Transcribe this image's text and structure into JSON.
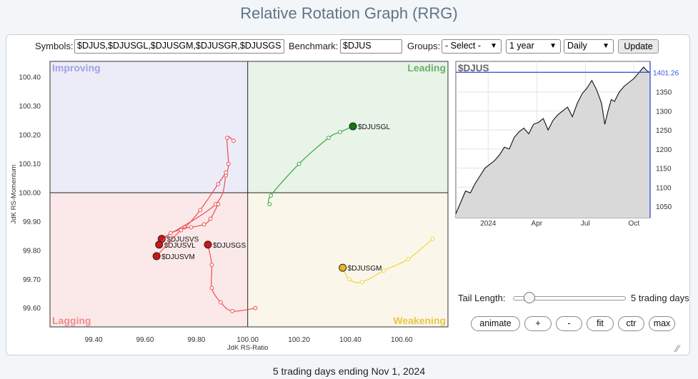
{
  "page": {
    "title": "Relative Rotation Graph (RRG)",
    "footer": "5 trading days ending Nov 1, 2024"
  },
  "controls": {
    "symbols_label": "Symbols:",
    "symbols_value": "$DJUS,$DJUSGL,$DJUSGM,$DJUSGR,$DJUSGS",
    "benchmark_label": "Benchmark:",
    "benchmark_value": "$DJUS",
    "groups_label": "Groups:",
    "groups_value": "- Select -",
    "period_value": "1 year",
    "frequency_value": "Daily",
    "update_label": "Update"
  },
  "tail": {
    "label": "Tail Length:",
    "value": 5,
    "value_text": "5 trading days"
  },
  "buttons": {
    "animate": "animate",
    "plus": "+",
    "minus": "-",
    "fit": "fit",
    "ctr": "ctr",
    "max": "max"
  },
  "chart_data": [
    {
      "type": "scatter",
      "title": "Relative Rotation Graph",
      "xlabel": "JdK RS-Ratio",
      "ylabel": "JdK RS-Momentum",
      "xlim": [
        99.23,
        100.78
      ],
      "ylim": [
        99.535,
        100.455
      ],
      "xticks": [
        99.4,
        99.6,
        99.8,
        100.0,
        100.2,
        100.4,
        100.6
      ],
      "yticks": [
        99.6,
        99.7,
        99.8,
        99.9,
        100.0,
        100.1,
        100.2,
        100.3,
        100.4
      ],
      "quadrants": {
        "top_left": "Improving",
        "top_right": "Leading",
        "bottom_left": "Lagging",
        "bottom_right": "Weakening"
      },
      "quadrant_colors": {
        "improving": "#ececf8",
        "leading": "#e9f4e9",
        "lagging": "#fbe9e9",
        "weakening": "#faf7ea",
        "improving_text": "#9fa3e4",
        "leading_text": "#69b06a",
        "lagging_text": "#f18d8d",
        "weakening_text": "#e8c64a"
      },
      "series": [
        {
          "name": "$DJUSGL",
          "color": "#3aa63a",
          "head_color": "#0d7a12",
          "points": [
            [
              100.085,
              99.96
            ],
            [
              100.09,
              99.99
            ],
            [
              100.2,
              100.1
            ],
            [
              100.315,
              100.19
            ],
            [
              100.36,
              100.21
            ],
            [
              100.41,
              100.23
            ]
          ]
        },
        {
          "name": "$DJUSGM",
          "color": "#f1d33a",
          "head_color": "#e6b620",
          "points": [
            [
              100.72,
              99.84
            ],
            [
              100.625,
              99.77
            ],
            [
              100.53,
              99.73
            ],
            [
              100.445,
              99.69
            ],
            [
              100.395,
              99.7
            ],
            [
              100.37,
              99.74
            ]
          ]
        },
        {
          "name": "$DJUSGS",
          "color": "#ee4c4c",
          "head_color": "#d11414",
          "points": [
            [
              100.03,
              99.6
            ],
            [
              99.94,
              99.59
            ],
            [
              99.895,
              99.62
            ],
            [
              99.86,
              99.67
            ],
            [
              99.86,
              99.75
            ],
            [
              99.845,
              99.82
            ]
          ]
        },
        {
          "name": "$DJUSVS",
          "color": "#ee4c4c",
          "head_color": "#d11414",
          "points": [
            [
              99.945,
              100.18
            ],
            [
              99.92,
              100.19
            ],
            [
              99.925,
              100.1
            ],
            [
              99.915,
              100.06
            ],
            [
              99.875,
              99.96
            ],
            [
              99.665,
              99.84
            ]
          ]
        },
        {
          "name": "$DJUSVL",
          "color": "#ee4c4c",
          "head_color": "#d11414",
          "points": [
            [
              99.915,
              100.07
            ],
            [
              99.885,
              100.03
            ],
            [
              99.815,
              99.94
            ],
            [
              99.755,
              99.88
            ],
            [
              99.7,
              99.86
            ],
            [
              99.655,
              99.82
            ]
          ]
        },
        {
          "name": "$DJUSVM",
          "color": "#ee4c4c",
          "head_color": "#d11414",
          "points": [
            [
              99.885,
              99.96
            ],
            [
              99.855,
              99.91
            ],
            [
              99.83,
              99.89
            ],
            [
              99.78,
              99.88
            ],
            [
              99.74,
              99.87
            ],
            [
              99.645,
              99.78
            ]
          ]
        }
      ]
    },
    {
      "type": "area",
      "title": "$DJUS",
      "last_value": 1401.26,
      "last_value_label": "1401.26",
      "xticks": [
        "2024",
        "Apr",
        "Jul",
        "Oct"
      ],
      "xtick_positions": [
        2.0,
        5.0,
        8.0,
        11.0
      ],
      "yticks": [
        1050,
        1100,
        1150,
        1200,
        1250,
        1300,
        1350
      ],
      "ylim": [
        1020,
        1430
      ],
      "xlim": [
        0,
        12
      ],
      "x": [
        0,
        0.3,
        0.6,
        0.9,
        1.2,
        1.5,
        1.8,
        2.1,
        2.4,
        2.7,
        3.0,
        3.3,
        3.6,
        3.9,
        4.2,
        4.5,
        4.8,
        5.1,
        5.4,
        5.7,
        6.0,
        6.3,
        6.6,
        6.9,
        7.2,
        7.5,
        7.8,
        8.1,
        8.4,
        8.7,
        9.0,
        9.2,
        9.4,
        9.6,
        9.8,
        10.1,
        10.4,
        10.7,
        11.0,
        11.3,
        11.6,
        11.8,
        12.0
      ],
      "values": [
        1030,
        1060,
        1090,
        1085,
        1110,
        1130,
        1150,
        1160,
        1170,
        1185,
        1205,
        1200,
        1230,
        1245,
        1255,
        1240,
        1265,
        1270,
        1280,
        1250,
        1275,
        1290,
        1300,
        1310,
        1285,
        1320,
        1345,
        1360,
        1380,
        1355,
        1320,
        1265,
        1300,
        1330,
        1325,
        1350,
        1365,
        1375,
        1385,
        1400,
        1415,
        1405,
        1401
      ]
    }
  ]
}
